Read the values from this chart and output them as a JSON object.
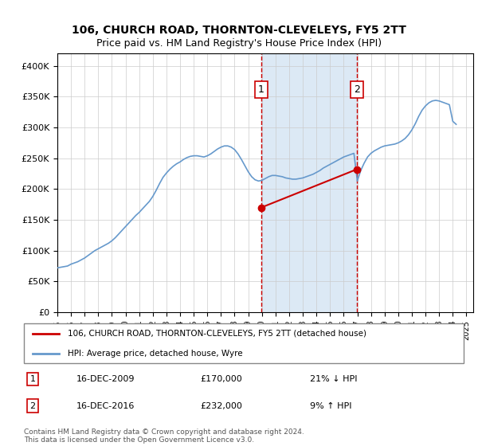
{
  "title": "106, CHURCH ROAD, THORNTON-CLEVELEYS, FY5 2TT",
  "subtitle": "Price paid vs. HM Land Registry's House Price Index (HPI)",
  "hpi_label": "HPI: Average price, detached house, Wyre",
  "property_label": "106, CHURCH ROAD, THORNTON-CLEVELEYS, FY5 2TT (detached house)",
  "footer": "Contains HM Land Registry data © Crown copyright and database right 2024.\nThis data is licensed under the Open Government Licence v3.0.",
  "sale_color": "#cc0000",
  "hpi_color": "#6699cc",
  "background_color": "#ffffff",
  "shaded_color": "#dce9f5",
  "ylim": [
    0,
    420000
  ],
  "yticks": [
    0,
    50000,
    100000,
    150000,
    200000,
    250000,
    300000,
    350000,
    400000
  ],
  "ytick_labels": [
    "£0",
    "£50K",
    "£100K",
    "£150K",
    "£200K",
    "£250K",
    "£300K",
    "£350K",
    "£400K"
  ],
  "sale1": {
    "date": "16-DEC-2009",
    "price": 170000,
    "label": "1",
    "pct": "21% ↓ HPI",
    "x_year": 2009.96
  },
  "sale2": {
    "date": "16-DEC-2016",
    "price": 232000,
    "label": "2",
    "pct": "9% ↑ HPI",
    "x_year": 2016.96
  },
  "hpi_years": [
    1995.0,
    1995.25,
    1995.5,
    1995.75,
    1996.0,
    1996.25,
    1996.5,
    1996.75,
    1997.0,
    1997.25,
    1997.5,
    1997.75,
    1998.0,
    1998.25,
    1998.5,
    1998.75,
    1999.0,
    1999.25,
    1999.5,
    1999.75,
    2000.0,
    2000.25,
    2000.5,
    2000.75,
    2001.0,
    2001.25,
    2001.5,
    2001.75,
    2002.0,
    2002.25,
    2002.5,
    2002.75,
    2003.0,
    2003.25,
    2003.5,
    2003.75,
    2004.0,
    2004.25,
    2004.5,
    2004.75,
    2005.0,
    2005.25,
    2005.5,
    2005.75,
    2006.0,
    2006.25,
    2006.5,
    2006.75,
    2007.0,
    2007.25,
    2007.5,
    2007.75,
    2008.0,
    2008.25,
    2008.5,
    2008.75,
    2009.0,
    2009.25,
    2009.5,
    2009.75,
    2010.0,
    2010.25,
    2010.5,
    2010.75,
    2011.0,
    2011.25,
    2011.5,
    2011.75,
    2012.0,
    2012.25,
    2012.5,
    2012.75,
    2013.0,
    2013.25,
    2013.5,
    2013.75,
    2014.0,
    2014.25,
    2014.5,
    2014.75,
    2015.0,
    2015.25,
    2015.5,
    2015.75,
    2016.0,
    2016.25,
    2016.5,
    2016.75,
    2017.0,
    2017.25,
    2017.5,
    2017.75,
    2018.0,
    2018.25,
    2018.5,
    2018.75,
    2019.0,
    2019.25,
    2019.5,
    2019.75,
    2020.0,
    2020.25,
    2020.5,
    2020.75,
    2021.0,
    2021.25,
    2021.5,
    2021.75,
    2022.0,
    2022.25,
    2022.5,
    2022.75,
    2023.0,
    2023.25,
    2023.5,
    2023.75,
    2024.0,
    2024.25
  ],
  "hpi_values": [
    72000,
    73000,
    74000,
    75000,
    78000,
    80000,
    82000,
    85000,
    88000,
    92000,
    96000,
    100000,
    103000,
    106000,
    109000,
    112000,
    116000,
    121000,
    127000,
    133000,
    139000,
    145000,
    151000,
    157000,
    162000,
    168000,
    174000,
    180000,
    188000,
    198000,
    209000,
    219000,
    226000,
    232000,
    237000,
    241000,
    244000,
    248000,
    251000,
    253000,
    254000,
    254000,
    253000,
    252000,
    254000,
    257000,
    261000,
    265000,
    268000,
    270000,
    270000,
    268000,
    264000,
    257000,
    248000,
    238000,
    228000,
    220000,
    215000,
    213000,
    214000,
    217000,
    220000,
    222000,
    222000,
    221000,
    220000,
    218000,
    217000,
    216000,
    216000,
    217000,
    218000,
    220000,
    222000,
    224000,
    227000,
    230000,
    234000,
    237000,
    240000,
    243000,
    246000,
    249000,
    252000,
    254000,
    256000,
    258000,
    213000,
    230000,
    242000,
    252000,
    258000,
    262000,
    265000,
    268000,
    270000,
    271000,
    272000,
    273000,
    275000,
    278000,
    282000,
    288000,
    296000,
    306000,
    318000,
    328000,
    335000,
    340000,
    343000,
    344000,
    343000,
    341000,
    339000,
    337000,
    310000,
    305000
  ],
  "sale_years": [
    2009.96,
    2016.96
  ],
  "sale_prices": [
    170000,
    232000
  ],
  "xlim": [
    1995,
    2025.5
  ],
  "xticks": [
    1995,
    1996,
    1997,
    1998,
    1999,
    2000,
    2001,
    2002,
    2003,
    2004,
    2005,
    2006,
    2007,
    2008,
    2009,
    2010,
    2011,
    2012,
    2013,
    2014,
    2015,
    2016,
    2017,
    2018,
    2019,
    2020,
    2021,
    2022,
    2023,
    2024,
    2025
  ]
}
